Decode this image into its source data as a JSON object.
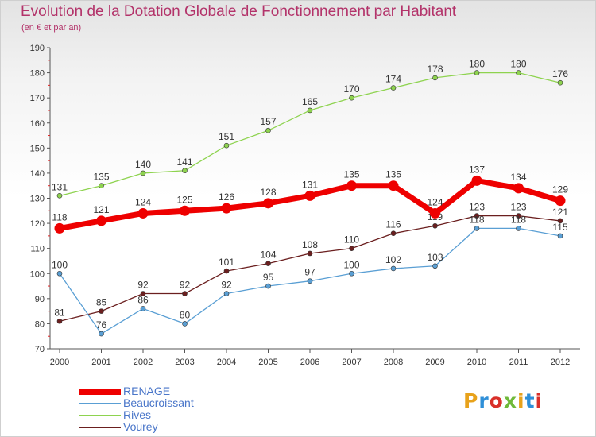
{
  "title": "Evolution de la Dotation Globale de Fonctionnement par Habitant",
  "subtitle": "(en € et par an)",
  "logo": {
    "text": "Proxiti",
    "colors": [
      "#e8a21b",
      "#2f8fd8",
      "#d9302a",
      "#6fb93a",
      "#e8a21b",
      "#2f8fd8",
      "#d9302a"
    ]
  },
  "chart_data": {
    "type": "line",
    "x": [
      "2000",
      "2001",
      "2002",
      "2003",
      "2004",
      "2005",
      "2006",
      "2007",
      "2008",
      "2009",
      "2010",
      "2011",
      "2012"
    ],
    "ylim": [
      70,
      190
    ],
    "yticks": [
      "70",
      "80",
      "90",
      "100",
      "110",
      "120",
      "130",
      "140",
      "150",
      "160",
      "170",
      "180",
      "190"
    ],
    "grid": false,
    "legend": "bottom-left",
    "series": [
      {
        "name": "Rives",
        "color": "#8ed34f",
        "width": 1.3,
        "values": [
          131,
          135,
          140,
          141,
          151,
          157,
          165,
          170,
          174,
          178,
          180,
          180,
          176
        ],
        "labels": [
          "131",
          "135",
          "140",
          "141",
          "151",
          "157",
          "165",
          "170",
          "174",
          "178",
          "180",
          "180",
          "176"
        ]
      },
      {
        "name": "Vourey",
        "color": "#6b1f1f",
        "width": 1.3,
        "values": [
          81,
          85,
          92,
          92,
          101,
          104,
          108,
          110,
          116,
          119,
          123,
          123,
          121
        ],
        "labels": [
          "81",
          "85",
          "92",
          "92",
          "101",
          "104",
          "108",
          "110",
          "116",
          "119",
          "123",
          "123",
          "121"
        ]
      },
      {
        "name": "Beaucroissant",
        "color": "#5a9fd4",
        "width": 1.3,
        "values": [
          100,
          76,
          86,
          80,
          92,
          95,
          97,
          100,
          102,
          103,
          118,
          118,
          115
        ],
        "labels": [
          "100",
          "76",
          "86",
          "80",
          "92",
          "95",
          "97",
          "100",
          "102",
          "103",
          "118",
          "118",
          "115"
        ]
      },
      {
        "name": "RENAGE",
        "color": "#ee0000",
        "width": 7,
        "values": [
          118,
          121,
          124,
          125,
          126,
          128,
          131,
          135,
          135,
          124,
          137,
          134,
          129
        ],
        "labels": [
          "118",
          "121",
          "124",
          "125",
          "126",
          "128",
          "131",
          "135",
          "135",
          "124",
          "137",
          "134",
          "129"
        ]
      }
    ],
    "legend_order": [
      "RENAGE",
      "Beaucroissant",
      "Rives",
      "Vourey"
    ]
  }
}
